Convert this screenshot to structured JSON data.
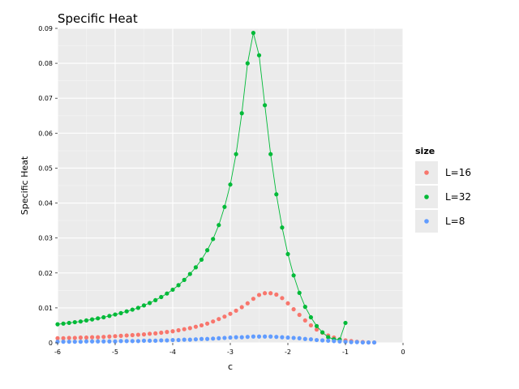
{
  "chart_data": {
    "type": "scatter",
    "title": "Specific Heat",
    "xlabel": "c",
    "ylabel": "Specific Heat",
    "xlim": [
      -6,
      0
    ],
    "ylim": [
      0,
      0.09
    ],
    "x_ticks": [
      -6,
      -5,
      -4,
      -3,
      -2,
      -1,
      0
    ],
    "x_tick_labels": [
      "-6",
      "-5",
      "-4",
      "-3",
      "-2",
      "-1",
      "0"
    ],
    "y_ticks": [
      0,
      0.01,
      0.02,
      0.03,
      0.04,
      0.05,
      0.06,
      0.07,
      0.08,
      0.09
    ],
    "y_tick_labels": [
      "0",
      "0.01",
      "0.02",
      "0.03",
      "0.04",
      "0.05",
      "0.06",
      "0.07",
      "0.08",
      "0.09"
    ],
    "grid": true,
    "legend_title": "size",
    "legend_position": "right",
    "x": [
      -6.0,
      -5.9,
      -5.8,
      -5.7,
      -5.6,
      -5.5,
      -5.4,
      -5.3,
      -5.2,
      -5.1,
      -5.0,
      -4.9,
      -4.8,
      -4.7,
      -4.6,
      -4.5,
      -4.4,
      -4.3,
      -4.2,
      -4.1,
      -4.0,
      -3.9,
      -3.8,
      -3.7,
      -3.6,
      -3.5,
      -3.4,
      -3.3,
      -3.2,
      -3.1,
      -3.0,
      -2.9,
      -2.8,
      -2.7,
      -2.6,
      -2.5,
      -2.4,
      -2.3,
      -2.2,
      -2.1,
      -2.0,
      -1.9,
      -1.8,
      -1.7,
      -1.6,
      -1.5,
      -1.4,
      -1.3,
      -1.2,
      -1.1,
      -1.0,
      -0.9,
      -0.8,
      -0.7,
      -0.6,
      -0.5
    ],
    "series": [
      {
        "name": "L=16",
        "color": "#F8766D",
        "line": false,
        "values": [
          0.0013,
          0.0013,
          0.0014,
          0.0014,
          0.0015,
          0.0015,
          0.0016,
          0.0016,
          0.0017,
          0.0018,
          0.0019,
          0.002,
          0.0021,
          0.0022,
          0.0023,
          0.0024,
          0.0026,
          0.0027,
          0.0029,
          0.0031,
          0.0033,
          0.0036,
          0.0039,
          0.0042,
          0.0046,
          0.005,
          0.0055,
          0.0061,
          0.0068,
          0.0075,
          0.0083,
          0.0092,
          0.0102,
          0.0113,
          0.0126,
          0.0137,
          0.0142,
          0.0142,
          0.0138,
          0.0128,
          0.0113,
          0.0096,
          0.008,
          0.0064,
          0.005,
          0.0038,
          0.0029,
          0.0021,
          0.0015,
          0.001,
          0.0007,
          0.0005,
          0.0003,
          0.0002,
          0.0001,
          0.0001
        ]
      },
      {
        "name": "L=32",
        "color": "#00BA38",
        "line": true,
        "values": [
          0.0053,
          0.0055,
          0.0057,
          0.0059,
          0.0061,
          0.0064,
          0.0067,
          0.007,
          0.0073,
          0.0077,
          0.0081,
          0.0085,
          0.009,
          0.0095,
          0.01,
          0.0107,
          0.0114,
          0.0122,
          0.0131,
          0.0141,
          0.0152,
          0.0165,
          0.018,
          0.0197,
          0.0216,
          0.0238,
          0.0265,
          0.0297,
          0.0337,
          0.0389,
          0.0453,
          0.054,
          0.0657,
          0.08,
          0.0887,
          0.0823,
          0.068,
          0.054,
          0.0425,
          0.033,
          0.0254,
          0.0193,
          0.0143,
          0.0103,
          0.0073,
          0.0048,
          0.003,
          0.0016,
          0.001,
          0.0009,
          0.0057,
          null,
          null,
          null,
          null,
          null
        ]
      },
      {
        "name": "L=8",
        "color": "#619CFF",
        "line": false,
        "values": [
          0.0003,
          0.0003,
          0.0003,
          0.0003,
          0.0003,
          0.0004,
          0.0004,
          0.0004,
          0.0004,
          0.0004,
          0.0004,
          0.0005,
          0.0005,
          0.0005,
          0.0005,
          0.0006,
          0.0006,
          0.0006,
          0.0007,
          0.0007,
          0.0008,
          0.0008,
          0.0009,
          0.0009,
          0.001,
          0.0011,
          0.0011,
          0.0012,
          0.0013,
          0.0014,
          0.0015,
          0.0016,
          0.0016,
          0.0017,
          0.0018,
          0.0018,
          0.0018,
          0.0018,
          0.0017,
          0.0016,
          0.0015,
          0.0014,
          0.0013,
          0.0011,
          0.001,
          0.0008,
          0.0007,
          0.0006,
          0.0005,
          0.0004,
          0.0003,
          0.0002,
          0.0002,
          0.0001,
          0.0001,
          0.0001
        ]
      }
    ]
  }
}
